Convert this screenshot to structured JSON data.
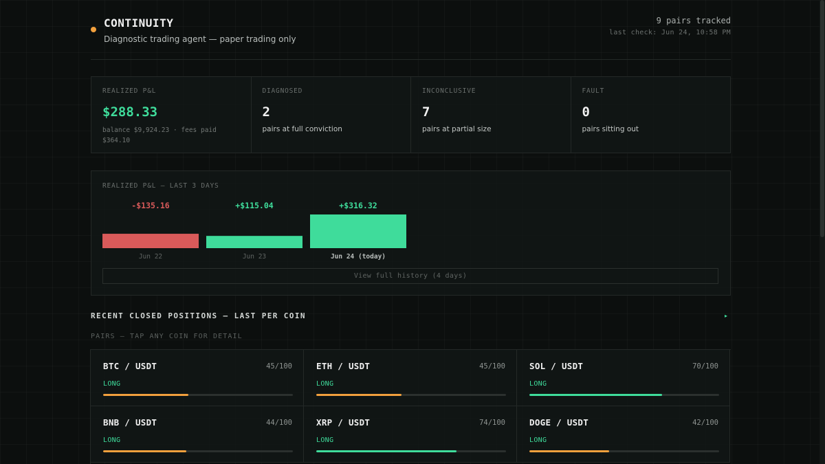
{
  "header": {
    "app_name": "CONTINUITY",
    "subtitle": "Diagnostic trading agent — paper trading only",
    "pairs_tracked": "9 pairs tracked",
    "last_check": "last check: Jun 24, 10:58 PM"
  },
  "stats": {
    "realized_pnl": {
      "label": "REALIZED P&L",
      "value": "$288.33",
      "sub": "balance $9,924.23 · fees paid $364.10"
    },
    "diagnosed": {
      "label": "DIAGNOSED",
      "value": "2",
      "sub": "pairs at full conviction"
    },
    "inconclusive": {
      "label": "INCONCLUSIVE",
      "value": "7",
      "sub": "pairs at partial size"
    },
    "fault": {
      "label": "FAULT",
      "value": "0",
      "sub": "pairs sitting out"
    }
  },
  "chart_data": {
    "type": "bar",
    "title": "REALIZED P&L — LAST 3 DAYS",
    "categories": [
      "Jun 22",
      "Jun 23",
      "Jun 24 (today)"
    ],
    "values": [
      -135.16,
      115.04,
      316.32
    ],
    "value_labels": [
      "-$135.16",
      "+$115.04",
      "+$316.32"
    ],
    "colors": {
      "positive": "#3fdc9b",
      "negative": "#d95a5a"
    }
  },
  "chart_panel": {
    "history_button": "View full history (4 days)"
  },
  "section": {
    "title": "RECENT CLOSED POSITIONS — LAST PER COIN",
    "arrow": "▸",
    "pairs_caption": "PAIRS — TAP ANY COIN FOR DETAIL"
  },
  "pairs": [
    {
      "name": "BTC / USDT",
      "score": "45/100",
      "side": "LONG",
      "fill_fraction": 0.45,
      "bar_color": "#f2a03d"
    },
    {
      "name": "ETH / USDT",
      "score": "45/100",
      "side": "LONG",
      "fill_fraction": 0.45,
      "bar_color": "#f2a03d"
    },
    {
      "name": "SOL / USDT",
      "score": "70/100",
      "side": "LONG",
      "fill_fraction": 0.7,
      "bar_color": "#3fdc9b"
    },
    {
      "name": "BNB / USDT",
      "score": "44/100",
      "side": "LONG",
      "fill_fraction": 0.44,
      "bar_color": "#f2a03d"
    },
    {
      "name": "XRP / USDT",
      "score": "74/100",
      "side": "LONG",
      "fill_fraction": 0.74,
      "bar_color": "#3fdc9b"
    },
    {
      "name": "DOGE / USDT",
      "score": "42/100",
      "side": "LONG",
      "fill_fraction": 0.42,
      "bar_color": "#f2a03d"
    }
  ],
  "colors": {
    "accent": "#3fdc9b",
    "warning": "#f2a03d",
    "negative": "#d95a5a",
    "background": "#0c0f0e"
  }
}
